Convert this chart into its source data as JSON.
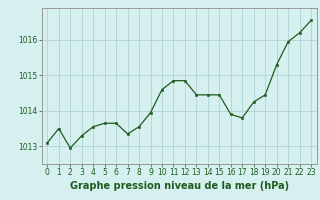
{
  "hours": [
    0,
    1,
    2,
    3,
    4,
    5,
    6,
    7,
    8,
    9,
    10,
    11,
    12,
    13,
    14,
    15,
    16,
    17,
    18,
    19,
    20,
    21,
    22,
    23
  ],
  "pressure": [
    1013.1,
    1013.5,
    1012.95,
    1013.3,
    1013.55,
    1013.65,
    1013.65,
    1013.35,
    1013.55,
    1013.95,
    1014.6,
    1014.85,
    1014.85,
    1014.45,
    1014.45,
    1014.45,
    1013.9,
    1013.8,
    1014.25,
    1014.45,
    1015.3,
    1015.95,
    1016.2,
    1016.55
  ],
  "line_color": "#1e5c1e",
  "marker_color": "#1e5c1e",
  "bg_color": "#d6f0f0",
  "grid_color": "#aed4d4",
  "axis_color": "#999999",
  "xlabel": "Graphe pression niveau de la mer (hPa)",
  "xlabel_color": "#1e5c1e",
  "xlabel_fontsize": 7,
  "tick_color": "#1e5c1e",
  "tick_fontsize": 5.5,
  "ylim": [
    1012.5,
    1016.9
  ],
  "yticks": [
    1013,
    1014,
    1015,
    1016
  ],
  "xlim": [
    -0.5,
    23.5
  ],
  "xticks": [
    0,
    1,
    2,
    3,
    4,
    5,
    6,
    7,
    8,
    9,
    10,
    11,
    12,
    13,
    14,
    15,
    16,
    17,
    18,
    19,
    20,
    21,
    22,
    23
  ]
}
